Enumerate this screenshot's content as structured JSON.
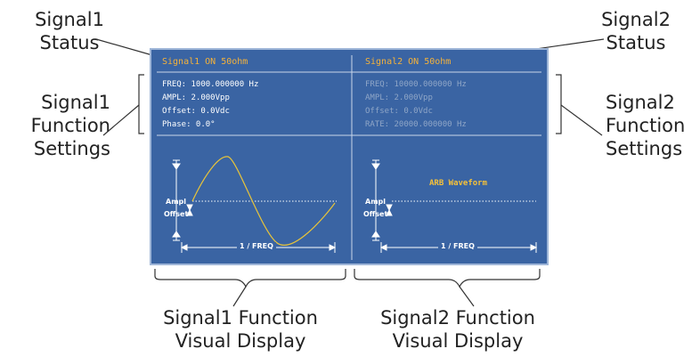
{
  "callouts": {
    "signal1_status": [
      "Signal1",
      "Status"
    ],
    "signal2_status": [
      "Signal2",
      "Status"
    ],
    "signal1_function_settings": [
      "Signal1",
      "Function",
      "Settings"
    ],
    "signal2_function_settings": [
      "Signal2",
      "Function",
      "Settings"
    ],
    "signal1_visual": [
      "Signal1 Function",
      "Visual Display"
    ],
    "signal2_visual": [
      "Signal2 Function",
      "Visual Display"
    ]
  },
  "screen": {
    "signal1": {
      "status": "Signal1 ON 50ohm",
      "params": [
        "FREQ: 1000.000000 Hz",
        "AMPL: 2.000Vpp",
        "Offset: 0.0Vdc",
        "Phase: 0.0°"
      ],
      "ampl_label": "Ampl",
      "offset_label": "Offset",
      "period_label": "1 / FREQ"
    },
    "signal2": {
      "status": "Signal2 ON 50ohm",
      "params": [
        "FREQ: 10000.000000 Hz",
        "AMPL: 2.000Vpp",
        "Offset: 0.0Vdc",
        "RATE: 20000.000000 Hz"
      ],
      "waveform_label": "ARB Waveform",
      "ampl_label": "Ampl",
      "offset_label": "Offset",
      "period_label": "1 / FREQ"
    }
  },
  "colors": {
    "screen_bg": "#3a64a3",
    "status_text": "#f5b23a",
    "sine_wave": "#e8c43a",
    "dim_text": "#8fa6c7"
  }
}
